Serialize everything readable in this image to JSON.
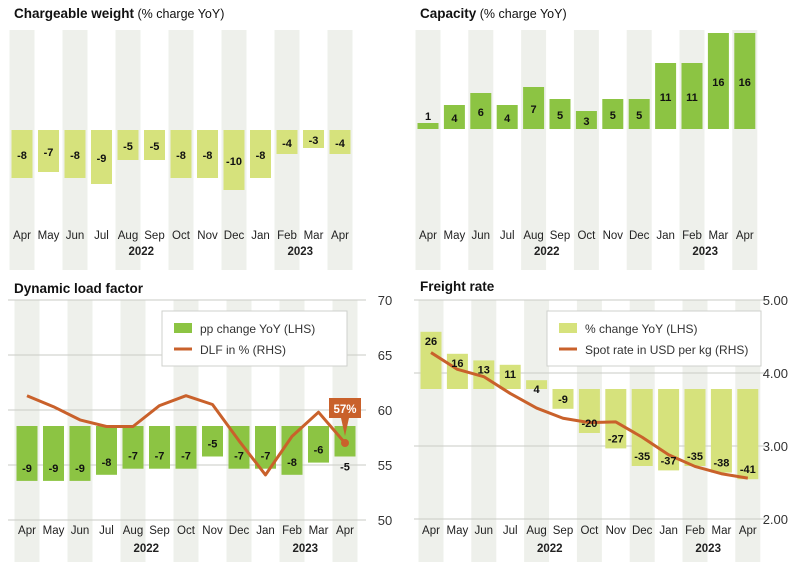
{
  "colors": {
    "green": "#8cc443",
    "lime": "#d6e27c",
    "orange": "#c9612b",
    "stripe": "#eef0eb",
    "grid": "#c9cbc6"
  },
  "chart_data": [
    {
      "type": "bar",
      "title": "Chargeable weight",
      "subtitle": "(% charge YoY)",
      "categories": [
        "Apr",
        "May",
        "Jun",
        "Jul",
        "Aug",
        "Sep",
        "Oct",
        "Nov",
        "Dec",
        "Jan",
        "Feb",
        "Mar",
        "Apr"
      ],
      "years": [
        "2022",
        "2023"
      ],
      "values": [
        -8,
        -7,
        -8,
        -9,
        -5,
        -5,
        -8,
        -8,
        -10,
        -8,
        -4,
        -3,
        -4
      ],
      "bar_color": "lime"
    },
    {
      "type": "bar",
      "title": "Capacity",
      "subtitle": "(% charge YoY)",
      "categories": [
        "Apr",
        "May",
        "Jun",
        "Jul",
        "Aug",
        "Sep",
        "Oct",
        "Nov",
        "Dec",
        "Jan",
        "Feb",
        "Mar",
        "Apr"
      ],
      "years": [
        "2022",
        "2023"
      ],
      "values": [
        1,
        4,
        6,
        4,
        7,
        5,
        3,
        5,
        5,
        11,
        11,
        16,
        16
      ],
      "bar_color": "green"
    },
    {
      "type": "bar+line",
      "title": "Dynamic load factor",
      "subtitle": "",
      "categories": [
        "Apr",
        "May",
        "Jun",
        "Jul",
        "Aug",
        "Sep",
        "Oct",
        "Nov",
        "Dec",
        "Jan",
        "Feb",
        "Mar",
        "Apr"
      ],
      "years": [
        "2022",
        "2023"
      ],
      "series": [
        {
          "name": "pp change YoY (LHS)",
          "type": "bar",
          "values": [
            -9,
            -9,
            -9,
            -8,
            -7,
            -7,
            -7,
            -5,
            -7,
            -7,
            -8,
            -6,
            -5
          ]
        },
        {
          "name": "DLF in % (RHS)",
          "type": "line",
          "values": [
            61.3,
            60.3,
            59.1,
            58.5,
            58.5,
            60.4,
            61.3,
            60.5,
            57.2,
            54.1,
            57.6,
            59.8,
            57.0
          ]
        }
      ],
      "y2_ticks": [
        "50",
        "55",
        "60",
        "65",
        "70"
      ],
      "y2lim": [
        50,
        70
      ],
      "callout": "57%",
      "bar_color": "green"
    },
    {
      "type": "bar+line",
      "title": "Freight rate",
      "subtitle": "",
      "categories": [
        "Apr",
        "May",
        "Jun",
        "Jul",
        "Aug",
        "Sep",
        "Oct",
        "Nov",
        "Dec",
        "Jan",
        "Feb",
        "Mar",
        "Apr"
      ],
      "years": [
        "2022",
        "2023"
      ],
      "series": [
        {
          "name": "% change YoY (LHS)",
          "type": "bar",
          "values": [
            26,
            16,
            13,
            11,
            4,
            -9,
            -20,
            -27,
            -35,
            -37,
            -35,
            -38,
            -41
          ]
        },
        {
          "name": "Spot rate in USD per kg (RHS)",
          "type": "line",
          "values": [
            4.28,
            4.05,
            3.95,
            3.72,
            3.52,
            3.38,
            3.32,
            3.33,
            3.12,
            2.88,
            2.72,
            2.62,
            2.56
          ]
        }
      ],
      "y2_ticks": [
        "2.00",
        "3.00",
        "4.00",
        "5.00"
      ],
      "y2lim": [
        2,
        5
      ],
      "bar_color": "lime"
    }
  ]
}
